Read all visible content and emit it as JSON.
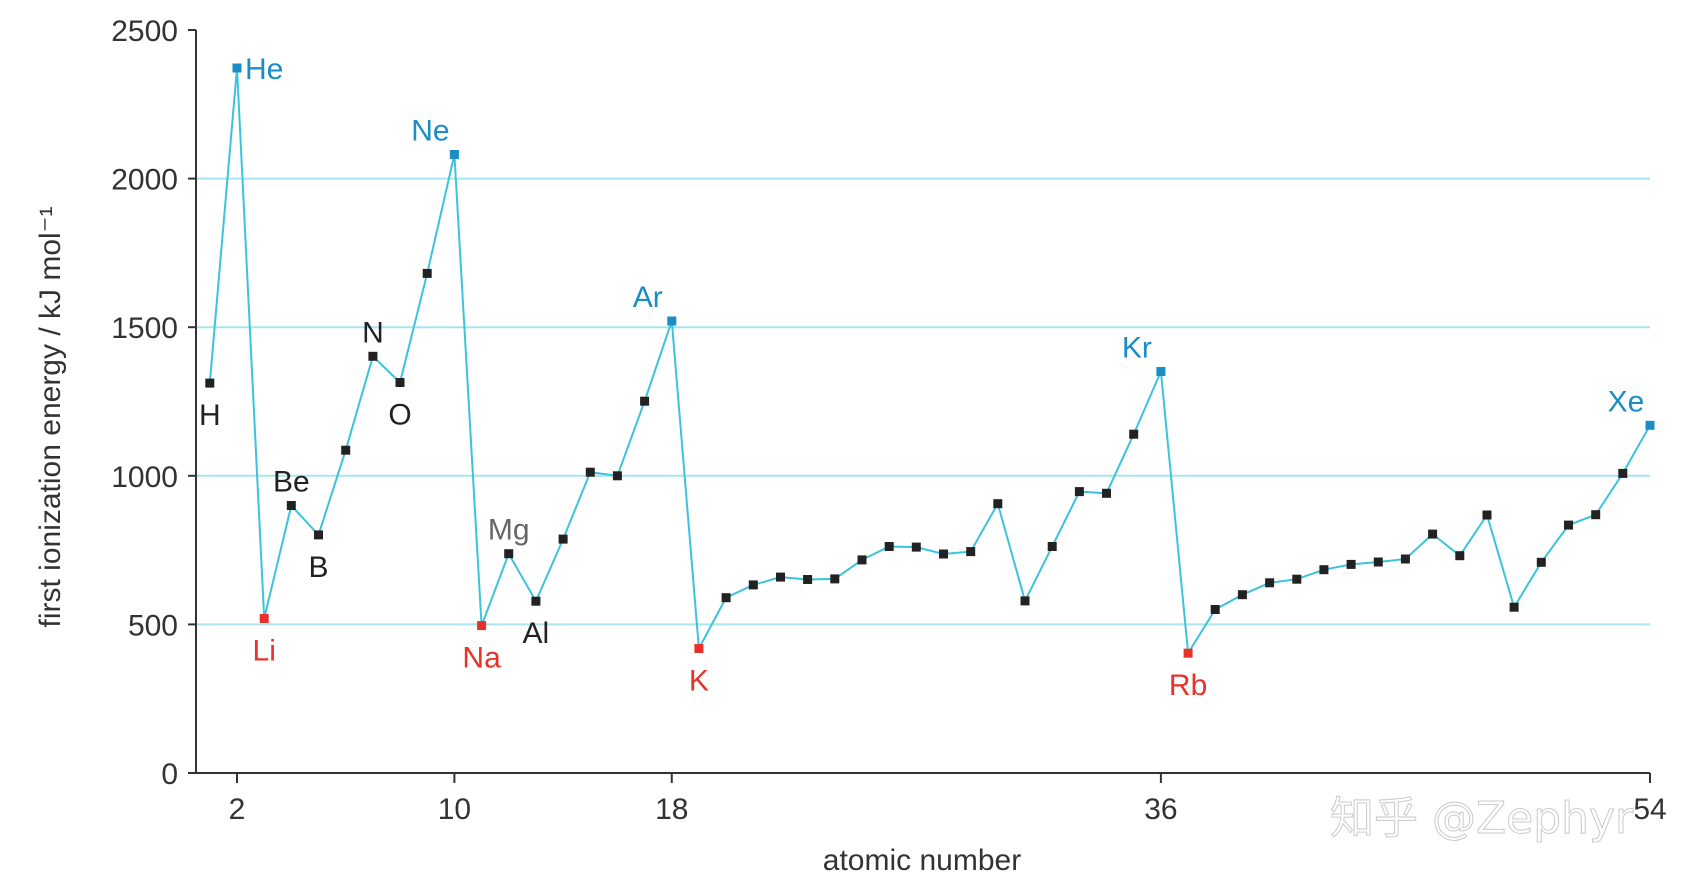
{
  "watermark": "知乎 @Zephyr",
  "chart_data": {
    "type": "line",
    "title": "",
    "xlabel": "atomic number",
    "ylabel": "first ionization energy / kJ mol⁻¹",
    "xlim": [
      0.5,
      54
    ],
    "ylim": [
      0,
      2500
    ],
    "x_ticks": [
      2,
      10,
      18,
      36,
      54
    ],
    "y_ticks": [
      0,
      500,
      1000,
      1500,
      2000,
      2500
    ],
    "y_gridlines": [
      500,
      1000,
      1500,
      2000
    ],
    "grid": "horizontal",
    "colors": {
      "line": "#3cc3dc",
      "grid": "#a8e4f0",
      "axis": "#333333",
      "marker_default": "#222222",
      "noble_gas": "#1a8ec4",
      "alkali_metal": "#e8312a",
      "label_default": "#222222",
      "label_gray": "#666666"
    },
    "series": [
      {
        "points": [
          {
            "x": 1,
            "y": 1312
          },
          {
            "x": 2,
            "y": 2372
          },
          {
            "x": 3,
            "y": 520
          },
          {
            "x": 4,
            "y": 900
          },
          {
            "x": 5,
            "y": 801
          },
          {
            "x": 6,
            "y": 1086
          },
          {
            "x": 7,
            "y": 1402
          },
          {
            "x": 8,
            "y": 1314
          },
          {
            "x": 9,
            "y": 1681
          },
          {
            "x": 10,
            "y": 2081
          },
          {
            "x": 11,
            "y": 496
          },
          {
            "x": 12,
            "y": 738
          },
          {
            "x": 13,
            "y": 578
          },
          {
            "x": 14,
            "y": 787
          },
          {
            "x": 15,
            "y": 1012
          },
          {
            "x": 16,
            "y": 1000
          },
          {
            "x": 17,
            "y": 1251
          },
          {
            "x": 18,
            "y": 1521
          },
          {
            "x": 19,
            "y": 419
          },
          {
            "x": 20,
            "y": 590
          },
          {
            "x": 21,
            "y": 633
          },
          {
            "x": 22,
            "y": 659
          },
          {
            "x": 23,
            "y": 651
          },
          {
            "x": 24,
            "y": 653
          },
          {
            "x": 25,
            "y": 717
          },
          {
            "x": 26,
            "y": 762
          },
          {
            "x": 27,
            "y": 760
          },
          {
            "x": 28,
            "y": 737
          },
          {
            "x": 29,
            "y": 745
          },
          {
            "x": 30,
            "y": 906
          },
          {
            "x": 31,
            "y": 579
          },
          {
            "x": 32,
            "y": 762
          },
          {
            "x": 33,
            "y": 947
          },
          {
            "x": 34,
            "y": 941
          },
          {
            "x": 35,
            "y": 1140
          },
          {
            "x": 36,
            "y": 1351
          },
          {
            "x": 37,
            "y": 403
          },
          {
            "x": 38,
            "y": 550
          },
          {
            "x": 39,
            "y": 600
          },
          {
            "x": 40,
            "y": 640
          },
          {
            "x": 41,
            "y": 652
          },
          {
            "x": 42,
            "y": 684
          },
          {
            "x": 43,
            "y": 702
          },
          {
            "x": 44,
            "y": 710
          },
          {
            "x": 45,
            "y": 720
          },
          {
            "x": 46,
            "y": 804
          },
          {
            "x": 47,
            "y": 731
          },
          {
            "x": 48,
            "y": 868
          },
          {
            "x": 49,
            "y": 558
          },
          {
            "x": 50,
            "y": 709
          },
          {
            "x": 51,
            "y": 834
          },
          {
            "x": 52,
            "y": 869
          },
          {
            "x": 53,
            "y": 1008
          },
          {
            "x": 54,
            "y": 1170
          }
        ]
      }
    ],
    "annotations": [
      {
        "x": 1,
        "symbol": "H",
        "group": "default",
        "pos": "below"
      },
      {
        "x": 2,
        "symbol": "He",
        "group": "noble",
        "pos": "right"
      },
      {
        "x": 3,
        "symbol": "Li",
        "group": "alkali",
        "pos": "below"
      },
      {
        "x": 4,
        "symbol": "Be",
        "group": "default",
        "pos": "above"
      },
      {
        "x": 5,
        "symbol": "B",
        "group": "default",
        "pos": "below"
      },
      {
        "x": 7,
        "symbol": "N",
        "group": "default",
        "pos": "above"
      },
      {
        "x": 8,
        "symbol": "O",
        "group": "default",
        "pos": "below"
      },
      {
        "x": 10,
        "symbol": "Ne",
        "group": "noble",
        "pos": "above-left"
      },
      {
        "x": 11,
        "symbol": "Na",
        "group": "alkali",
        "pos": "below"
      },
      {
        "x": 12,
        "symbol": "Mg",
        "group": "gray",
        "pos": "above"
      },
      {
        "x": 13,
        "symbol": "Al",
        "group": "default",
        "pos": "below"
      },
      {
        "x": 18,
        "symbol": "Ar",
        "group": "noble",
        "pos": "above-left"
      },
      {
        "x": 19,
        "symbol": "K",
        "group": "alkali",
        "pos": "below"
      },
      {
        "x": 36,
        "symbol": "Kr",
        "group": "noble",
        "pos": "above-left"
      },
      {
        "x": 37,
        "symbol": "Rb",
        "group": "alkali",
        "pos": "below"
      },
      {
        "x": 54,
        "symbol": "Xe",
        "group": "noble",
        "pos": "above-left"
      }
    ]
  }
}
